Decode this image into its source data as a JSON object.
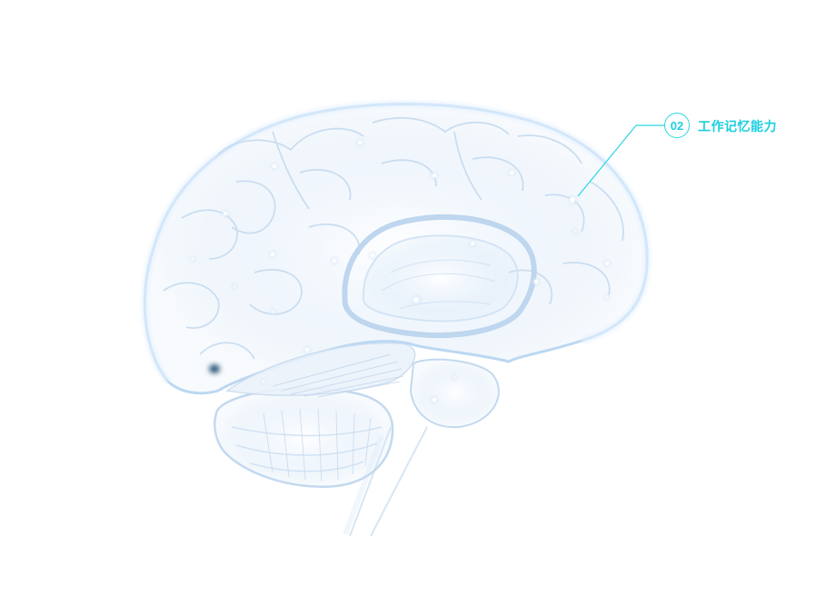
{
  "callout": {
    "number": "02",
    "label": "工作记忆能力",
    "accent_color": "#1ccfe0"
  },
  "illustration": {
    "subject": "translucent-brain",
    "outline_color": "#bcd8f2",
    "highlight_color": "#dff0ff"
  }
}
